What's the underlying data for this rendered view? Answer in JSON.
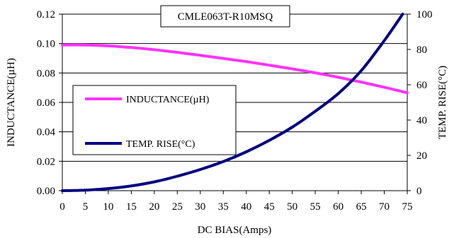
{
  "chart_data": {
    "type": "line",
    "title": "CMLE063T-R10MSQ",
    "xlabel": "DC BIAS(Amps)",
    "ylabel_left": "INDUCTANCE(µH)",
    "ylabel_right": "TEMP. RISE(°C)",
    "xlim": [
      0,
      75
    ],
    "ylim_left": [
      0,
      0.12
    ],
    "ylim_right": [
      0,
      100
    ],
    "x_ticks": [
      "0",
      "5",
      "10",
      "15",
      "20",
      "25",
      "30",
      "35",
      "40",
      "45",
      "50",
      "55",
      "60",
      "65",
      "70",
      "75"
    ],
    "y_left_ticks": [
      "0.00",
      "0.02",
      "0.04",
      "0.06",
      "0.08",
      "0.10",
      "0.12"
    ],
    "y_right_ticks": [
      "0",
      "20",
      "40",
      "60",
      "80",
      "100"
    ],
    "grid": "horizontal",
    "legend_position": "middle-left",
    "series": [
      {
        "name": "INDUCTANCE(µH)",
        "axis": "left",
        "color": "#ff33ff",
        "x": [
          0,
          5,
          10,
          15,
          20,
          25,
          30,
          35,
          40,
          45,
          50,
          55,
          60,
          65,
          70,
          75
        ],
        "y": [
          0.099,
          0.099,
          0.0984,
          0.0973,
          0.0958,
          0.094,
          0.092,
          0.0899,
          0.0877,
          0.0853,
          0.0828,
          0.0801,
          0.0771,
          0.0738,
          0.0703,
          0.0665
        ]
      },
      {
        "name": "TEMP. RISE(°C)",
        "axis": "right",
        "color": "#000080",
        "x": [
          0,
          5,
          10,
          15,
          20,
          25,
          30,
          35,
          40,
          45,
          50,
          55,
          60,
          65,
          70,
          74
        ],
        "y": [
          0,
          0.3,
          1.2,
          2.7,
          5,
          8.2,
          12,
          16.5,
          22,
          28.5,
          36,
          45,
          55,
          68,
          85,
          100
        ]
      }
    ]
  }
}
